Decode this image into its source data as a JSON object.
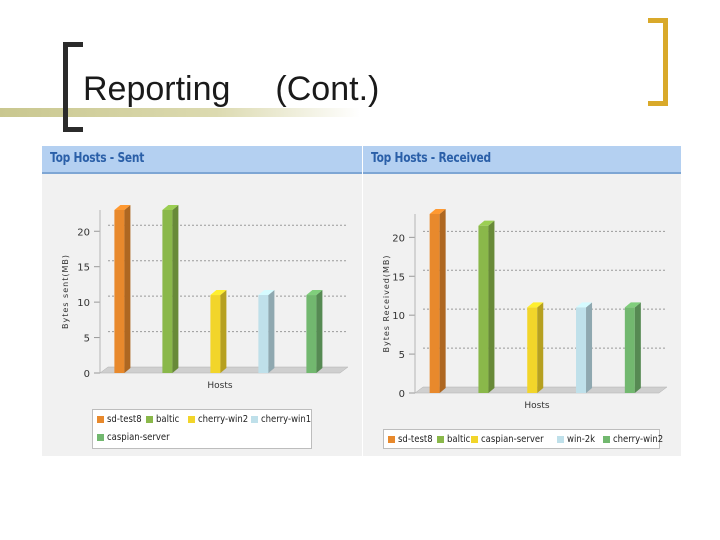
{
  "slide": {
    "title_main": "Reporting",
    "title_sub": "(Cont.)"
  },
  "chart_data": [
    {
      "type": "bar",
      "title": "Top Hosts - Sent",
      "xlabel": "Hosts",
      "ylabel": "Bytes sent(MB)",
      "ylim": [
        0,
        23
      ],
      "yticks": [
        0,
        5,
        10,
        15,
        20
      ],
      "grid": true,
      "categories": [
        "sd-test8",
        "baltic",
        "cherry-win2",
        "cherry-win1",
        "caspian-server"
      ],
      "values": [
        23,
        23,
        11,
        11,
        11
      ],
      "colors": [
        "#e8892c",
        "#8ab84a",
        "#f2d52a",
        "#bfe0ea",
        "#72b86f"
      ],
      "legend": [
        {
          "label": "sd-test8",
          "color": "#e8892c"
        },
        {
          "label": "baltic",
          "color": "#8ab84a"
        },
        {
          "label": "cherry-win2",
          "color": "#f2d52a"
        },
        {
          "label": "cherry-win1",
          "color": "#bfe0ea"
        },
        {
          "label": "caspian-server",
          "color": "#72b86f"
        }
      ],
      "legend_position": "bottom"
    },
    {
      "type": "bar",
      "title": "Top Hosts - Received",
      "xlabel": "Hosts",
      "ylabel": "Bytes Received(MB)",
      "ylim": [
        0,
        23
      ],
      "yticks": [
        0,
        5,
        10,
        15,
        20
      ],
      "grid": true,
      "categories": [
        "sd-test8",
        "baltic",
        "caspian-server",
        "win-2k",
        "cherry-win2"
      ],
      "values": [
        23,
        21.5,
        11,
        11,
        11
      ],
      "colors": [
        "#e8892c",
        "#8ab84a",
        "#f2d52a",
        "#bfe0ea",
        "#72b86f"
      ],
      "legend": [
        {
          "label": "sd-test8",
          "color": "#e8892c"
        },
        {
          "label": "baltic",
          "color": "#8ab84a"
        },
        {
          "label": "caspian-server",
          "color": "#f2d52a"
        },
        {
          "label": "win-2k",
          "color": "#bfe0ea"
        },
        {
          "label": "cherry-win2",
          "color": "#72b86f"
        }
      ],
      "legend_position": "bottom"
    }
  ]
}
